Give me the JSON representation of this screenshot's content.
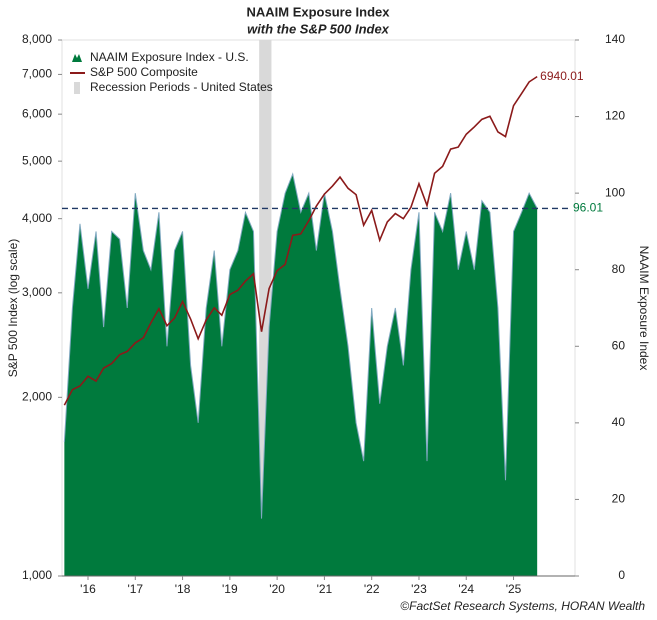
{
  "chart_data": {
    "type": "area-line",
    "title": "NAAIM Exposure Index",
    "subtitle": "with the S&P 500 Index",
    "y_label": "S&P 500 Index (log scale)",
    "y2_label": "NAAIM Exposure Index",
    "source": "©FactSet Research Systems, HORAN Wealth",
    "x": [
      2016,
      2016.17,
      2016.33,
      2016.5,
      2016.67,
      2016.83,
      2017,
      2017.17,
      2017.33,
      2017.5,
      2017.67,
      2017.83,
      2018,
      2018.17,
      2018.33,
      2018.5,
      2018.67,
      2018.83,
      2019,
      2019.17,
      2019.33,
      2019.5,
      2019.67,
      2019.83,
      2020,
      2020.17,
      2020.33,
      2020.5,
      2020.67,
      2020.83,
      2021,
      2021.17,
      2021.33,
      2021.5,
      2021.67,
      2021.83,
      2022,
      2022.17,
      2022.33,
      2022.5,
      2022.67,
      2022.83,
      2023,
      2023.17,
      2023.33,
      2023.5,
      2023.67,
      2023.83,
      2024,
      2024.17,
      2024.33,
      2024.5,
      2024.67,
      2024.83,
      2025,
      2025.17,
      2025.33,
      2025.5,
      2025.67,
      2025.83,
      2026
    ],
    "xlim": [
      2015.95,
      2026.8
    ],
    "xticks": [
      {
        "value": 2016.5,
        "label": "'16"
      },
      {
        "value": 2017.5,
        "label": "'17"
      },
      {
        "value": 2018.5,
        "label": "'18"
      },
      {
        "value": 2019.5,
        "label": "'19"
      },
      {
        "value": 2020.5,
        "label": "'20"
      },
      {
        "value": 2021.5,
        "label": "'21"
      },
      {
        "value": 2022.5,
        "label": "'22"
      },
      {
        "value": 2023.5,
        "label": "'23"
      },
      {
        "value": 2024.5,
        "label": "'24"
      },
      {
        "value": 2025.5,
        "label": "'25"
      }
    ],
    "ylim": [
      1000,
      8000
    ],
    "yscale": "log",
    "yticks": [
      {
        "value": 1000,
        "label": "1,000"
      },
      {
        "value": 2000,
        "label": "2,000"
      },
      {
        "value": 3000,
        "label": "3,000"
      },
      {
        "value": 4000,
        "label": "4,000"
      },
      {
        "value": 5000,
        "label": "5,000"
      },
      {
        "value": 6000,
        "label": "6,000"
      },
      {
        "value": 7000,
        "label": "7,000"
      },
      {
        "value": 8000,
        "label": "8,000"
      }
    ],
    "y2lim": [
      0,
      140
    ],
    "y2ticks": [
      0,
      20,
      40,
      60,
      80,
      100,
      120,
      140
    ],
    "legend": "upper-left",
    "series": [
      {
        "name": "NAAIM Exposure Index - U.S.",
        "color": "#007a3d",
        "edge_color": "#7fa8c0",
        "axis": "y2",
        "values": [
          35,
          70,
          92,
          75,
          90,
          65,
          90,
          88,
          70,
          100,
          85,
          80,
          95,
          60,
          85,
          90,
          55,
          40,
          70,
          85,
          60,
          80,
          85,
          95,
          90,
          15,
          65,
          90,
          100,
          105,
          95,
          100,
          85,
          100,
          90,
          75,
          60,
          40,
          30,
          70,
          45,
          60,
          70,
          55,
          80,
          95,
          30,
          95,
          90,
          100,
          80,
          90,
          80,
          98,
          95,
          70,
          25,
          90,
          95,
          100,
          96.01
        ]
      },
      {
        "name": "S&P 500 Composite",
        "color": "#8b1a1a",
        "axis": "y",
        "values": [
          1940,
          2060,
          2090,
          2170,
          2130,
          2240,
          2280,
          2360,
          2390,
          2470,
          2520,
          2670,
          2820,
          2640,
          2720,
          2900,
          2710,
          2510,
          2700,
          2830,
          2750,
          2980,
          3030,
          3140,
          3230,
          2580,
          3050,
          3270,
          3350,
          3750,
          3770,
          3970,
          4200,
          4400,
          4540,
          4700,
          4500,
          4390,
          3900,
          4130,
          3680,
          3950,
          4080,
          4000,
          4180,
          4580,
          4210,
          4770,
          4900,
          5240,
          5280,
          5550,
          5710,
          5880,
          5950,
          5600,
          5500,
          6200,
          6500,
          6800,
          6940.01
        ]
      }
    ],
    "recession": {
      "name": "Recession Periods - United States",
      "color": "#d9d9d9",
      "range": [
        2020.12,
        2020.38
      ]
    }
  }
}
